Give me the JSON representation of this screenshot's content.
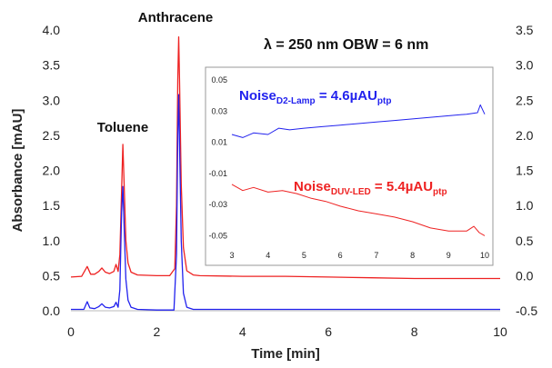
{
  "chart_data": [
    {
      "type": "line",
      "title": "",
      "xlabel": "Time [min]",
      "ylabel": "Absorbance [mAU]",
      "xlim": [
        0,
        10
      ],
      "ylim": [
        0,
        4.0
      ],
      "y2lim": [
        -0.5,
        3.5
      ],
      "x_ticks": [
        "0",
        "2",
        "4",
        "6",
        "8",
        "10"
      ],
      "y_ticks": [
        "0.0",
        "0.5",
        "1.0",
        "1.5",
        "2.0",
        "2.5",
        "3.0",
        "3.5",
        "4.0"
      ],
      "y2_ticks": [
        "-0.5",
        "0.0",
        "0.5",
        "1.0",
        "1.5",
        "2.0",
        "2.5",
        "3.0",
        "3.5"
      ],
      "grid": false,
      "annotations": {
        "toluene": "Toluene",
        "anthracene": "Anthracene",
        "conditions": "λ = 250 nm   OBW = 6 nm"
      },
      "series": [
        {
          "axis": "left",
          "color": "#ee2222",
          "points": [
            [
              0.0,
              0.48
            ],
            [
              0.25,
              0.49
            ],
            [
              0.38,
              0.63
            ],
            [
              0.46,
              0.52
            ],
            [
              0.55,
              0.52
            ],
            [
              0.65,
              0.56
            ],
            [
              0.72,
              0.61
            ],
            [
              0.8,
              0.55
            ],
            [
              0.9,
              0.53
            ],
            [
              1.0,
              0.56
            ],
            [
              1.05,
              0.66
            ],
            [
              1.1,
              0.56
            ],
            [
              1.14,
              0.8
            ],
            [
              1.18,
              1.7
            ],
            [
              1.21,
              2.37
            ],
            [
              1.24,
              1.8
            ],
            [
              1.28,
              1.0
            ],
            [
              1.33,
              0.68
            ],
            [
              1.4,
              0.55
            ],
            [
              1.55,
              0.51
            ],
            [
              2.0,
              0.5
            ],
            [
              2.3,
              0.5
            ],
            [
              2.42,
              0.6
            ],
            [
              2.46,
              1.5
            ],
            [
              2.49,
              3.3
            ],
            [
              2.51,
              3.9
            ],
            [
              2.53,
              3.3
            ],
            [
              2.57,
              1.8
            ],
            [
              2.62,
              0.9
            ],
            [
              2.7,
              0.57
            ],
            [
              2.85,
              0.51
            ],
            [
              3.0,
              0.5
            ],
            [
              4.0,
              0.49
            ],
            [
              5.0,
              0.49
            ],
            [
              6.0,
              0.48
            ],
            [
              7.0,
              0.47
            ],
            [
              8.0,
              0.46
            ],
            [
              9.0,
              0.46
            ],
            [
              10.0,
              0.46
            ]
          ]
        },
        {
          "axis": "left",
          "color": "#2222ee",
          "points": [
            [
              0.0,
              0.02
            ],
            [
              0.3,
              0.02
            ],
            [
              0.38,
              0.13
            ],
            [
              0.44,
              0.04
            ],
            [
              0.55,
              0.03
            ],
            [
              0.65,
              0.06
            ],
            [
              0.72,
              0.1
            ],
            [
              0.8,
              0.05
            ],
            [
              0.9,
              0.04
            ],
            [
              1.0,
              0.06
            ],
            [
              1.05,
              0.12
            ],
            [
              1.1,
              0.05
            ],
            [
              1.14,
              0.3
            ],
            [
              1.18,
              1.4
            ],
            [
              1.21,
              1.77
            ],
            [
              1.24,
              1.2
            ],
            [
              1.28,
              0.45
            ],
            [
              1.33,
              0.15
            ],
            [
              1.4,
              0.05
            ],
            [
              1.55,
              0.02
            ],
            [
              2.0,
              0.01
            ],
            [
              2.4,
              0.01
            ],
            [
              2.46,
              0.8
            ],
            [
              2.49,
              2.5
            ],
            [
              2.51,
              3.08
            ],
            [
              2.53,
              2.4
            ],
            [
              2.57,
              1.0
            ],
            [
              2.62,
              0.25
            ],
            [
              2.7,
              0.05
            ],
            [
              2.85,
              0.02
            ],
            [
              3.0,
              0.02
            ],
            [
              4.0,
              0.02
            ],
            [
              6.0,
              0.02
            ],
            [
              8.0,
              0.02
            ],
            [
              10.0,
              0.02
            ]
          ]
        }
      ]
    },
    {
      "type": "line",
      "title": "",
      "xlim": [
        3,
        10
      ],
      "ylim": [
        -0.055,
        0.05
      ],
      "x_ticks": [
        "3",
        "4",
        "5",
        "6",
        "7",
        "8",
        "9",
        "10"
      ],
      "y_ticks": [
        "0.05",
        "0.03",
        "0.01",
        "-0.01",
        "-0.03",
        "-0.05"
      ],
      "labels": {
        "d2_prefix": "Noise",
        "d2_sub": "D2-Lamp",
        "d2_value": " = 4.6µAU",
        "d2_unit_sub": "ptp",
        "led_prefix": "Noise",
        "led_sub": "DUV-LED",
        "led_value": " = 5.4µAU",
        "led_unit_sub": "ptp"
      },
      "series": [
        {
          "color": "#2222ee",
          "points": [
            [
              3.0,
              0.015
            ],
            [
              3.3,
              0.013
            ],
            [
              3.6,
              0.016
            ],
            [
              4.0,
              0.015
            ],
            [
              4.3,
              0.019
            ],
            [
              4.6,
              0.018
            ],
            [
              5.0,
              0.019
            ],
            [
              5.5,
              0.02
            ],
            [
              6.0,
              0.021
            ],
            [
              6.5,
              0.022
            ],
            [
              7.0,
              0.023
            ],
            [
              7.5,
              0.024
            ],
            [
              8.0,
              0.025
            ],
            [
              8.5,
              0.026
            ],
            [
              9.0,
              0.027
            ],
            [
              9.5,
              0.028
            ],
            [
              9.8,
              0.029
            ],
            [
              9.88,
              0.034
            ],
            [
              10.0,
              0.028
            ]
          ]
        },
        {
          "color": "#ee2222",
          "points": [
            [
              3.0,
              -0.017
            ],
            [
              3.3,
              -0.021
            ],
            [
              3.6,
              -0.019
            ],
            [
              4.0,
              -0.022
            ],
            [
              4.4,
              -0.021
            ],
            [
              4.8,
              -0.023
            ],
            [
              5.2,
              -0.026
            ],
            [
              5.6,
              -0.028
            ],
            [
              6.0,
              -0.031
            ],
            [
              6.5,
              -0.034
            ],
            [
              7.0,
              -0.036
            ],
            [
              7.5,
              -0.038
            ],
            [
              8.0,
              -0.041
            ],
            [
              8.5,
              -0.045
            ],
            [
              9.0,
              -0.047
            ],
            [
              9.5,
              -0.047
            ],
            [
              9.7,
              -0.044
            ],
            [
              9.85,
              -0.048
            ],
            [
              10.0,
              -0.05
            ]
          ]
        }
      ]
    }
  ]
}
